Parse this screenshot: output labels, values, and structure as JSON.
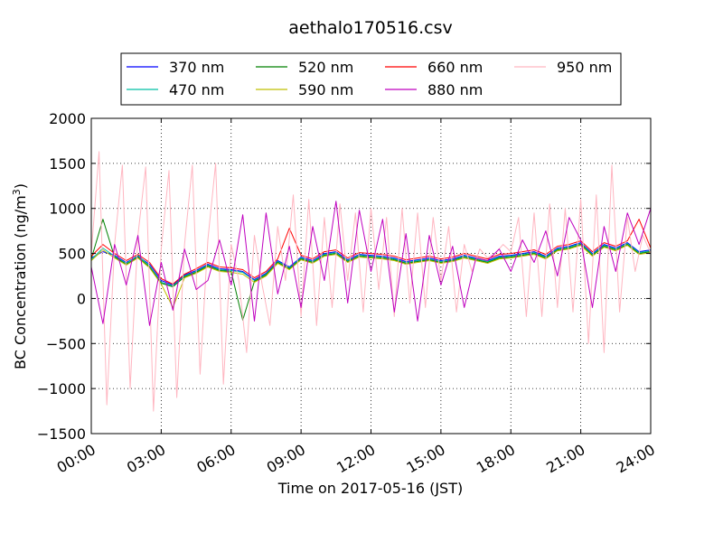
{
  "chart_data": {
    "type": "line",
    "title": "aethalo170516.csv",
    "xlabel": "Time on 2017-05-16 (JST)",
    "ylabel_main": "BC Concentration (ng/m",
    "ylabel_sup": "3",
    "ylabel_end": ")",
    "xlim": [
      "00:00",
      "24:00"
    ],
    "ylim": [
      -1500,
      2000
    ],
    "x_ticks": [
      "00:00",
      "03:00",
      "06:00",
      "09:00",
      "12:00",
      "15:00",
      "18:00",
      "21:00",
      "24:00"
    ],
    "y_ticks": [
      "2000",
      "1500",
      "1000",
      "500",
      "0",
      "−500",
      "−1000",
      "−1500"
    ],
    "y_tick_values": [
      2000,
      1500,
      1000,
      500,
      0,
      -500,
      -1000,
      -1500
    ],
    "grid": true,
    "legend_position": "top-center",
    "legend_columns": 4,
    "series": [
      {
        "name": "370 nm",
        "color": "#0000ff",
        "x": [
          "00:00",
          "00:30",
          "01:00",
          "01:30",
          "02:00",
          "02:30",
          "03:00",
          "03:30",
          "04:00",
          "04:30",
          "05:00",
          "05:30",
          "06:00",
          "06:30",
          "07:00",
          "07:30",
          "08:00",
          "08:30",
          "09:00",
          "09:30",
          "10:00",
          "10:30",
          "11:00",
          "11:30",
          "12:00",
          "12:30",
          "13:00",
          "13:30",
          "14:00",
          "14:30",
          "15:00",
          "15:30",
          "16:00",
          "16:30",
          "17:00",
          "17:30",
          "18:00",
          "18:30",
          "19:00",
          "19:30",
          "20:00",
          "20:30",
          "21:00",
          "21:30",
          "22:00",
          "22:30",
          "23:00",
          "23:30",
          "24:00"
        ],
        "y": [
          450,
          520,
          480,
          400,
          470,
          380,
          200,
          150,
          260,
          310,
          380,
          330,
          320,
          300,
          210,
          280,
          420,
          350,
          460,
          420,
          500,
          520,
          430,
          490,
          480,
          470,
          450,
          410,
          430,
          450,
          420,
          440,
          480,
          450,
          420,
          470,
          480,
          500,
          520,
          470,
          560,
          580,
          620,
          500,
          600,
          560,
          620,
          520,
          540
        ]
      },
      {
        "name": "470 nm",
        "color": "#00bfa5",
        "x": [
          "00:00",
          "00:30",
          "01:00",
          "01:30",
          "02:00",
          "02:30",
          "03:00",
          "03:30",
          "04:00",
          "04:30",
          "05:00",
          "05:30",
          "06:00",
          "06:30",
          "07:00",
          "07:30",
          "08:00",
          "08:30",
          "09:00",
          "09:30",
          "10:00",
          "10:30",
          "11:00",
          "11:30",
          "12:00",
          "12:30",
          "13:00",
          "13:30",
          "14:00",
          "14:30",
          "15:00",
          "15:30",
          "16:00",
          "16:30",
          "17:00",
          "17:30",
          "18:00",
          "18:30",
          "19:00",
          "19:30",
          "20:00",
          "20:30",
          "21:00",
          "21:30",
          "22:00",
          "22:30",
          "23:00",
          "23:30",
          "24:00"
        ],
        "y": [
          430,
          560,
          470,
          390,
          480,
          360,
          180,
          140,
          250,
          300,
          370,
          320,
          310,
          290,
          200,
          270,
          410,
          340,
          450,
          410,
          490,
          510,
          420,
          480,
          470,
          460,
          440,
          400,
          420,
          440,
          410,
          430,
          470,
          440,
          410,
          460,
          470,
          490,
          510,
          460,
          550,
          570,
          610,
          490,
          590,
          550,
          610,
          510,
          530
        ]
      },
      {
        "name": "520 nm",
        "color": "#008000",
        "x": [
          "00:00",
          "00:30",
          "01:00",
          "01:30",
          "02:00",
          "02:30",
          "03:00",
          "03:30",
          "04:00",
          "04:30",
          "05:00",
          "05:30",
          "06:00",
          "06:30",
          "07:00",
          "07:30",
          "08:00",
          "08:30",
          "09:00",
          "09:30",
          "10:00",
          "10:30",
          "11:00",
          "11:30",
          "12:00",
          "12:30",
          "13:00",
          "13:30",
          "14:00",
          "14:30",
          "15:00",
          "15:30",
          "16:00",
          "16:30",
          "17:00",
          "17:30",
          "18:00",
          "18:30",
          "19:00",
          "19:30",
          "20:00",
          "20:30",
          "21:00",
          "21:30",
          "22:00",
          "22:30",
          "23:00",
          "23:30",
          "24:00"
        ],
        "y": [
          440,
          880,
          460,
          380,
          460,
          350,
          170,
          130,
          240,
          290,
          360,
          310,
          300,
          -240,
          190,
          260,
          400,
          330,
          440,
          400,
          480,
          500,
          410,
          470,
          460,
          450,
          430,
          390,
          410,
          430,
          400,
          420,
          460,
          430,
          400,
          450,
          460,
          480,
          500,
          450,
          540,
          560,
          600,
          480,
          580,
          540,
          600,
          500,
          520
        ]
      },
      {
        "name": "590 nm",
        "color": "#bfbf00",
        "x": [
          "00:00",
          "00:30",
          "01:00",
          "01:30",
          "02:00",
          "02:30",
          "03:00",
          "03:30",
          "04:00",
          "04:30",
          "05:00",
          "05:30",
          "06:00",
          "06:30",
          "07:00",
          "07:30",
          "08:00",
          "08:30",
          "09:00",
          "09:30",
          "10:00",
          "10:30",
          "11:00",
          "11:30",
          "12:00",
          "12:30",
          "13:00",
          "13:30",
          "14:00",
          "14:30",
          "15:00",
          "15:30",
          "16:00",
          "16:30",
          "17:00",
          "17:30",
          "18:00",
          "18:30",
          "19:00",
          "19:30",
          "20:00",
          "20:30",
          "21:00",
          "21:30",
          "22:00",
          "22:30",
          "23:00",
          "23:30",
          "24:00"
        ],
        "y": [
          420,
          540,
          450,
          370,
          450,
          340,
          160,
          -100,
          230,
          280,
          350,
          300,
          290,
          270,
          180,
          250,
          390,
          320,
          430,
          390,
          470,
          490,
          400,
          460,
          450,
          440,
          420,
          380,
          400,
          420,
          390,
          410,
          450,
          420,
          390,
          440,
          450,
          470,
          490,
          440,
          530,
          550,
          590,
          470,
          570,
          530,
          590,
          490,
          510
        ]
      },
      {
        "name": "660 nm",
        "color": "#ff0000",
        "x": [
          "00:00",
          "00:30",
          "01:00",
          "01:30",
          "02:00",
          "02:30",
          "03:00",
          "03:30",
          "04:00",
          "04:30",
          "05:00",
          "05:30",
          "06:00",
          "06:30",
          "07:00",
          "07:30",
          "08:00",
          "08:30",
          "09:00",
          "09:30",
          "10:00",
          "10:30",
          "11:00",
          "11:30",
          "12:00",
          "12:30",
          "13:00",
          "13:30",
          "14:00",
          "14:30",
          "15:00",
          "15:30",
          "16:00",
          "16:30",
          "17:00",
          "17:30",
          "18:00",
          "18:30",
          "19:00",
          "19:30",
          "20:00",
          "20:30",
          "21:00",
          "21:30",
          "22:00",
          "22:30",
          "23:00",
          "23:30",
          "24:00"
        ],
        "y": [
          470,
          600,
          500,
          420,
          490,
          400,
          220,
          160,
          270,
          330,
          400,
          350,
          340,
          320,
          230,
          300,
          440,
          780,
          480,
          440,
          520,
          540,
          450,
          510,
          500,
          490,
          470,
          430,
          450,
          470,
          440,
          460,
          500,
          470,
          440,
          490,
          500,
          520,
          540,
          490,
          580,
          600,
          640,
          520,
          620,
          580,
          640,
          880,
          560
        ]
      },
      {
        "name": "880 nm",
        "color": "#bf00bf",
        "x": [
          "00:00",
          "00:30",
          "01:00",
          "01:30",
          "02:00",
          "02:30",
          "03:00",
          "03:30",
          "04:00",
          "04:30",
          "05:00",
          "05:30",
          "06:00",
          "06:30",
          "07:00",
          "07:30",
          "08:00",
          "08:30",
          "09:00",
          "09:30",
          "10:00",
          "10:30",
          "11:00",
          "11:30",
          "12:00",
          "12:30",
          "13:00",
          "13:30",
          "14:00",
          "14:30",
          "15:00",
          "15:30",
          "16:00",
          "16:30",
          "17:00",
          "17:30",
          "18:00",
          "18:30",
          "19:00",
          "19:30",
          "20:00",
          "20:30",
          "21:00",
          "21:30",
          "22:00",
          "22:30",
          "23:00",
          "23:30",
          "24:00"
        ],
        "y": [
          350,
          -280,
          600,
          150,
          700,
          -300,
          400,
          -130,
          550,
          100,
          200,
          650,
          150,
          930,
          -250,
          950,
          50,
          580,
          -100,
          800,
          200,
          1080,
          -50,
          980,
          300,
          880,
          -150,
          720,
          -250,
          700,
          150,
          580,
          -100,
          450,
          420,
          550,
          300,
          650,
          400,
          750,
          250,
          900,
          650,
          -100,
          800,
          300,
          950,
          600,
          1000
        ]
      },
      {
        "name": "950 nm",
        "color": "#ffb6c1",
        "x": [
          "00:00",
          "00:20",
          "00:40",
          "01:00",
          "01:20",
          "01:40",
          "02:00",
          "02:20",
          "02:40",
          "03:00",
          "03:20",
          "03:40",
          "04:00",
          "04:20",
          "04:40",
          "05:00",
          "05:20",
          "05:40",
          "06:00",
          "06:20",
          "06:40",
          "07:00",
          "07:20",
          "07:40",
          "08:00",
          "08:20",
          "08:40",
          "09:00",
          "09:20",
          "09:40",
          "10:00",
          "10:20",
          "10:40",
          "11:00",
          "11:20",
          "11:40",
          "12:00",
          "12:20",
          "12:40",
          "13:00",
          "13:20",
          "13:40",
          "14:00",
          "14:20",
          "14:40",
          "15:00",
          "15:20",
          "15:40",
          "16:00",
          "16:20",
          "16:40",
          "17:00",
          "17:20",
          "17:40",
          "18:00",
          "18:20",
          "18:40",
          "19:00",
          "19:20",
          "19:40",
          "20:00",
          "20:20",
          "20:40",
          "21:00",
          "21:20",
          "21:40",
          "22:00",
          "22:20",
          "22:40",
          "23:00",
          "23:20",
          "23:40",
          "24:00"
        ],
        "y": [
          500,
          1630,
          -1180,
          600,
          1480,
          -1000,
          700,
          1460,
          -1250,
          550,
          1420,
          -1100,
          600,
          1480,
          -840,
          650,
          1500,
          -950,
          600,
          200,
          -600,
          700,
          150,
          -300,
          800,
          200,
          1150,
          -200,
          1100,
          -300,
          900,
          -100,
          1050,
          200,
          950,
          -150,
          1000,
          100,
          900,
          -200,
          1000,
          -50,
          950,
          -100,
          900,
          200,
          800,
          -150,
          600,
          300,
          550,
          450,
          500,
          600,
          520,
          900,
          -200,
          950,
          -200,
          1050,
          -100,
          1000,
          -150,
          1100,
          -500,
          1150,
          -600,
          1480,
          -150,
          900,
          300,
          700,
          500
        ]
      }
    ]
  }
}
